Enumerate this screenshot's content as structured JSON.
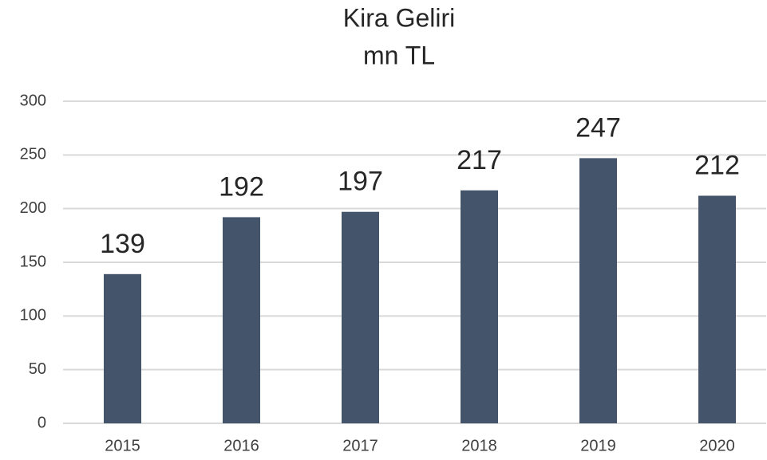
{
  "chart_data": {
    "type": "bar",
    "title": "Kira Geliri",
    "subtitle": "mn TL",
    "categories": [
      "2015",
      "2016",
      "2017",
      "2018",
      "2019",
      "2020"
    ],
    "values": [
      139,
      192,
      197,
      217,
      247,
      212
    ],
    "color": "#44546a",
    "ylim": [
      0,
      300
    ],
    "yticks": [
      0,
      50,
      100,
      150,
      200,
      250,
      300
    ],
    "grid": true
  }
}
